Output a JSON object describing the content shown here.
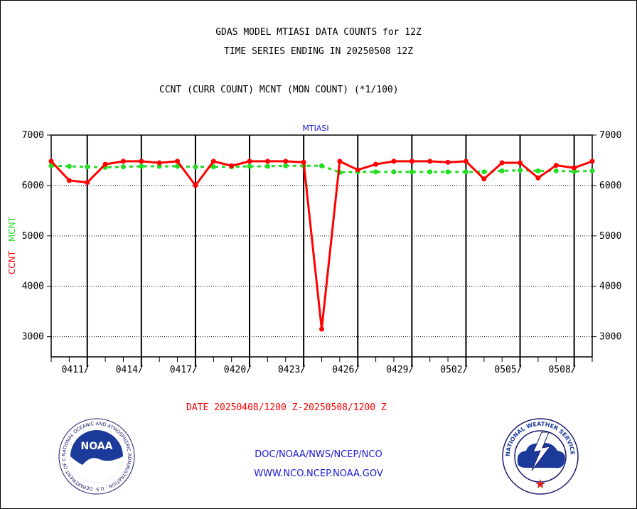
{
  "header": {
    "title_line1": "GDAS MODEL MTIASI DATA COUNTS for 12Z",
    "title_line2": "TIME SERIES ENDING IN 20250508 12Z",
    "subtitle": "CCNT (CURR COUNT) MCNT (MON COUNT) (*1/100)"
  },
  "footer": {
    "date_range": "DATE 20250408/1200 Z-20250508/1200 Z",
    "link1": "DOC/NOAA/NWS/NCEP/NCO",
    "link2": "WWW.NCO.NCEP.NOAA.GOV",
    "noaa_logo_text": "NOAA",
    "noaa_ring_text": "NATIONAL OCEANIC AND ATMOSPHERIC ADMINISTRATION · U.S. DEPARTMENT OF COMMERCE",
    "nws_ring_text": "NATIONAL WEATHER SERVICE"
  },
  "colors": {
    "ccnt": "#ff0000",
    "mcnt": "#22dd22",
    "title": "#1a1ad6"
  },
  "chart_data": {
    "type": "line",
    "title": "MTIASI",
    "ylabel_parts": [
      "CCNT",
      "MCNT"
    ],
    "ylim": [
      2600,
      7000
    ],
    "yticks": [
      3000,
      4000,
      5000,
      6000,
      7000
    ],
    "xlim": [
      0,
      30
    ],
    "x_ticks": [
      {
        "x": 2,
        "label": "0411/"
      },
      {
        "x": 5,
        "label": "0414/"
      },
      {
        "x": 8,
        "label": "0417/"
      },
      {
        "x": 11,
        "label": "0420/"
      },
      {
        "x": 14,
        "label": "0423/"
      },
      {
        "x": 17,
        "label": "0426/"
      },
      {
        "x": 20,
        "label": "0429/"
      },
      {
        "x": 23,
        "label": "0502/"
      },
      {
        "x": 26,
        "label": "0505/"
      },
      {
        "x": 29,
        "label": "0508/"
      }
    ],
    "x_dates": [
      "0408",
      "0409",
      "0410",
      "0411",
      "0412",
      "0413",
      "0414",
      "0415",
      "0416",
      "0417",
      "0418",
      "0419",
      "0420",
      "0421",
      "0422",
      "0423",
      "0424",
      "0425",
      "0426",
      "0427",
      "0428",
      "0429",
      "0430",
      "0501",
      "0502",
      "0503",
      "0504",
      "0505",
      "0506",
      "0507",
      "0508"
    ],
    "series": [
      {
        "name": "CCNT",
        "values": [
          6480,
          6100,
          6060,
          6420,
          6480,
          6480,
          6450,
          6480,
          6000,
          6480,
          6390,
          6480,
          6480,
          6480,
          6460,
          3150,
          6480,
          6310,
          6420,
          6480,
          6480,
          6480,
          6460,
          6480,
          6130,
          6450,
          6450,
          6150,
          6400,
          6350,
          6480
        ]
      },
      {
        "name": "MCNT",
        "values": [
          6390,
          6380,
          6370,
          6360,
          6370,
          6380,
          6380,
          6380,
          6370,
          6370,
          6370,
          6380,
          6380,
          6390,
          6390,
          6390,
          6260,
          6270,
          6270,
          6270,
          6270,
          6270,
          6270,
          6270,
          6270,
          6290,
          6300,
          6290,
          6290,
          6280,
          6290
        ]
      }
    ]
  }
}
